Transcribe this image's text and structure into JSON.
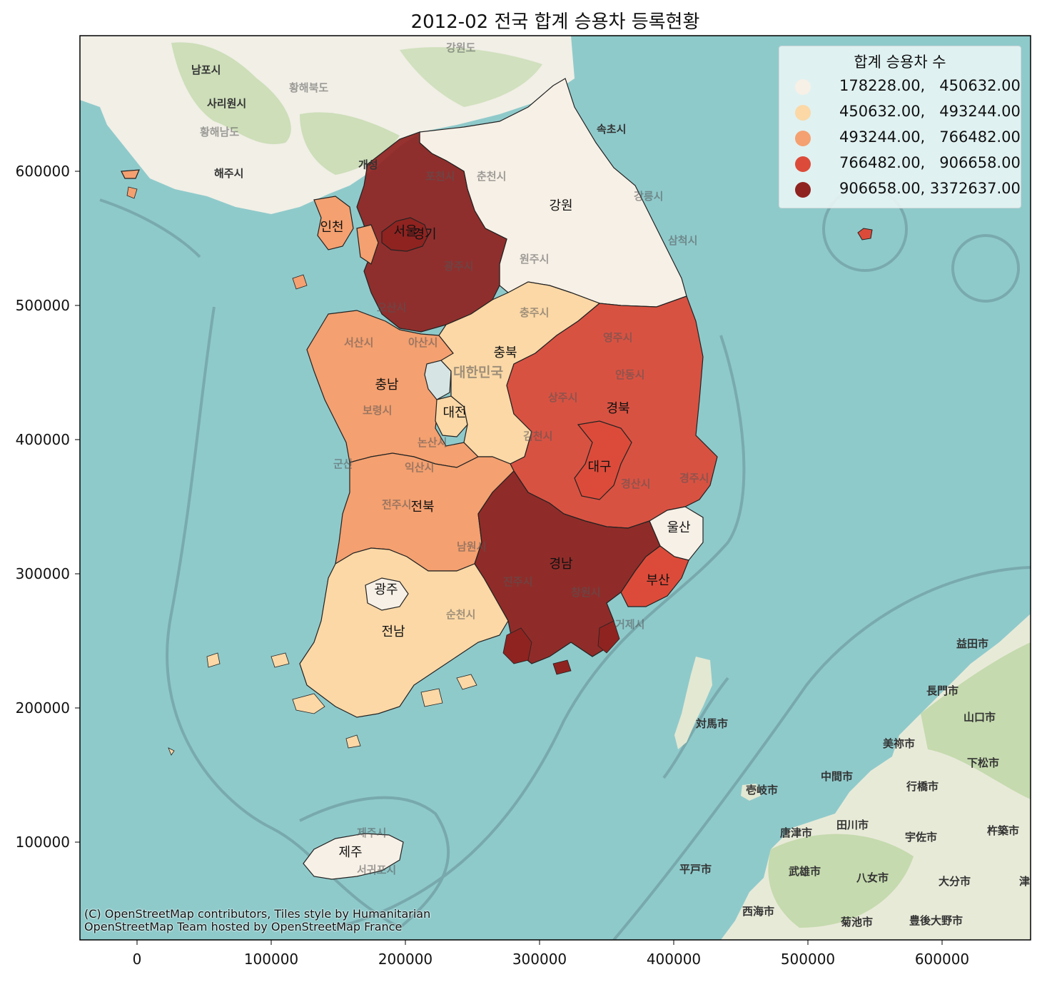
{
  "title": "2012-02 전국 합계 승용차 등록현황",
  "legend": {
    "title": "합계 승용차 수",
    "items": [
      {
        "label": "178228.00,   450632.00",
        "color": "#f7f0e6"
      },
      {
        "label": "450632.00,   493244.00",
        "color": "#fbd8a6"
      },
      {
        "label": "493244.00,   766482.00",
        "color": "#f4a070"
      },
      {
        "label": "766482.00,   906658.00",
        "color": "#dc4b3a"
      },
      {
        "label": "906658.00, 3372637.00",
        "color": "#8f2320"
      }
    ]
  },
  "axes": {
    "x_ticks": [
      "0",
      "100000",
      "200000",
      "300000",
      "400000",
      "500000",
      "600000"
    ],
    "y_ticks": [
      "600000",
      "500000",
      "400000",
      "300000",
      "200000",
      "100000"
    ]
  },
  "regions": [
    {
      "name": "강원",
      "class": 0
    },
    {
      "name": "경기",
      "class": 4
    },
    {
      "name": "서울",
      "class": 4
    },
    {
      "name": "인천",
      "class": 2
    },
    {
      "name": "충북",
      "class": 1
    },
    {
      "name": "충남",
      "class": 2
    },
    {
      "name": "대전",
      "class": 1
    },
    {
      "name": "경북",
      "class": 3
    },
    {
      "name": "대구",
      "class": 3
    },
    {
      "name": "전북",
      "class": 2
    },
    {
      "name": "경남",
      "class": 4
    },
    {
      "name": "울산",
      "class": 0
    },
    {
      "name": "부산",
      "class": 3
    },
    {
      "name": "광주",
      "class": 0
    },
    {
      "name": "전남",
      "class": 1
    },
    {
      "name": "제주",
      "class": 0
    }
  ],
  "basemap_labels": {
    "kaesong": "개성",
    "haeju": "해주시",
    "hwanghae_north": "황해북도",
    "hwanghae_south": "황해남도",
    "sariwon": "사리원시",
    "nampo": "남포시",
    "gangwondo_n": "강원도",
    "sokcho": "속초시",
    "gangneung": "강릉시",
    "samcheok": "삼척시",
    "pocheon": "포천시",
    "chuncheon": "춘천시",
    "wonju": "원주시",
    "chungju": "충주시",
    "yeongju": "영주시",
    "andong": "안동시",
    "sangju": "상주시",
    "gimcheon": "김천시",
    "gyeongju": "경주시",
    "gyeongsan": "경산시",
    "jinju": "진주시",
    "changwon": "창원시",
    "geoje": "거제시",
    "suncheon": "순천시",
    "jeonju": "전주시",
    "iksan": "익산시",
    "gunsan": "군산",
    "namwon": "남원시",
    "nonsan": "논산시",
    "boryeong": "보령시",
    "seosan": "서산시",
    "asan": "아산시",
    "osan": "오산시",
    "gwangju_gg": "광주시",
    "jejusi": "제주시",
    "seogwipo": "서귀포시",
    "korea": "대한민국",
    "tsushima": "対馬市",
    "iki": "壱岐市",
    "karatsu": "唐津市",
    "hirado": "平戸市",
    "takeo": "武雄市",
    "saikai": "西海市",
    "tagawa": "田川市",
    "yame": "八女市",
    "kikuchi": "菊池市",
    "nakama": "中間市",
    "yukuhashi": "行橋市",
    "usa": "宇佐市",
    "oita": "大分市",
    "bungo_ono": "豊後大野市",
    "masuda": "益田市",
    "nagato": "長門市",
    "yamaguchi": "山口市",
    "mine": "美祢市",
    "kudamatsu": "下松市",
    "kitsuki": "杵築市",
    "tsu": "津"
  },
  "attribution": [
    "(C) OpenStreetMap contributors, Tiles style by Humanitarian",
    "OpenStreetMap Team hosted by OpenStreetMap France"
  ]
}
